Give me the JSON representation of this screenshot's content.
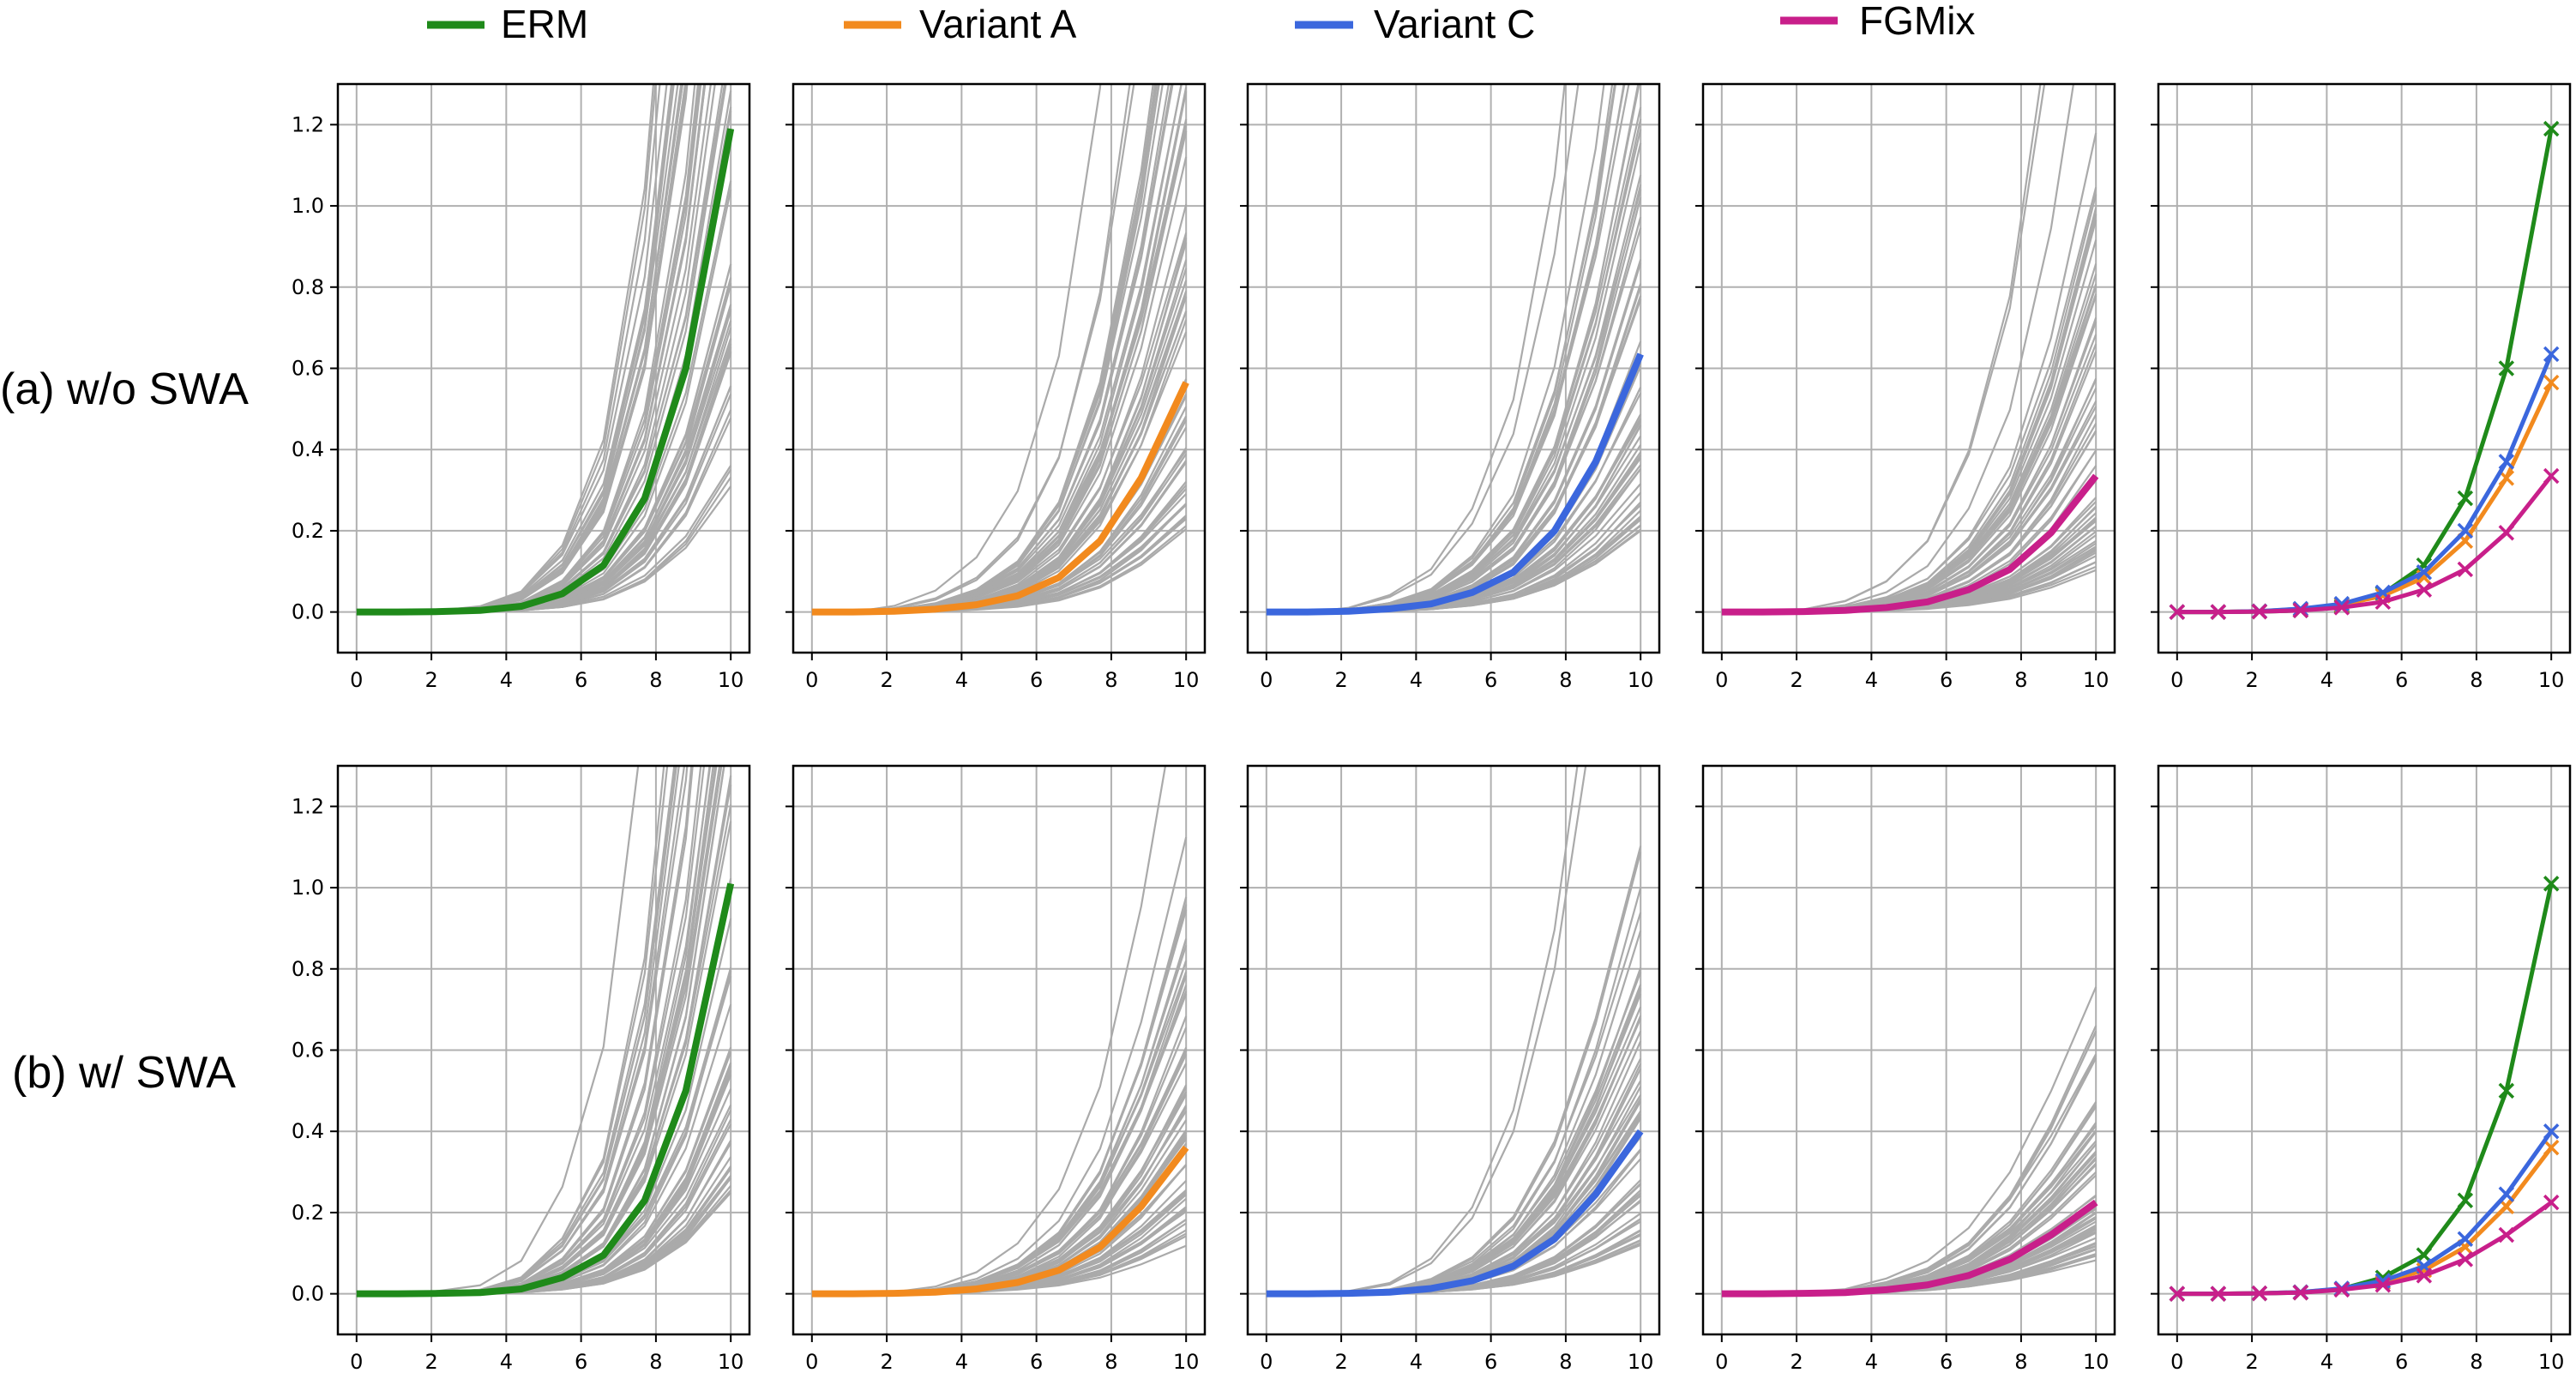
{
  "figure_title": "",
  "legend": [
    {
      "label": "ERM",
      "color": "#1f8a1a"
    },
    {
      "label": "Variant A",
      "color": "#f28a1e"
    },
    {
      "label": "Variant C",
      "color": "#3b67dd"
    },
    {
      "label": "FGMix",
      "color": "#c81f8a"
    }
  ],
  "row_labels": [
    "(a) w/o SWA",
    "(b) w/ SWA"
  ],
  "chart_data": {
    "type": "line",
    "layout": "2 rows x 5 panels; first four panels show per-run curves (gray) plus mean (colored); fifth panel overlays the four means with x markers",
    "x": [
      0,
      1.1,
      2.2,
      3.3,
      4.4,
      5.5,
      6.6,
      7.7,
      8.8,
      10
    ],
    "xlim": [
      -0.5,
      10.5
    ],
    "ylim": [
      -0.1,
      1.3
    ],
    "xticks": [
      0,
      2,
      4,
      6,
      8,
      10
    ],
    "yticks": [
      0.0,
      0.2,
      0.4,
      0.6,
      0.8,
      1.0,
      1.2
    ],
    "grid": true,
    "gray_curves_per_panel": 60,
    "gray_color": "#aaaaaa",
    "rows": [
      {
        "label": "(a) w/o SWA",
        "series": [
          {
            "name": "ERM",
            "color": "#1f8a1a",
            "values": [
              0,
              0,
              0.001,
              0.004,
              0.014,
              0.045,
              0.115,
              0.28,
              0.6,
              1.19
            ],
            "spread": 2.6
          },
          {
            "name": "Variant A",
            "color": "#f28a1e",
            "values": [
              0,
              0,
              0.002,
              0.007,
              0.018,
              0.04,
              0.085,
              0.175,
              0.33,
              0.565
            ],
            "spread": 2.3
          },
          {
            "name": "Variant C",
            "color": "#3b67dd",
            "values": [
              0,
              0,
              0.002,
              0.008,
              0.02,
              0.048,
              0.098,
              0.2,
              0.37,
              0.635
            ],
            "spread": 2.2
          },
          {
            "name": "FGMix",
            "color": "#c81f8a",
            "values": [
              0,
              0,
              0.001,
              0.004,
              0.011,
              0.025,
              0.055,
              0.105,
              0.195,
              0.335
            ],
            "spread": 2.4
          }
        ]
      },
      {
        "label": "(b) w/ SWA",
        "series": [
          {
            "name": "ERM",
            "color": "#1f8a1a",
            "values": [
              0,
              0,
              0.001,
              0.003,
              0.012,
              0.04,
              0.095,
              0.23,
              0.5,
              1.01
            ],
            "spread": 2.8
          },
          {
            "name": "Variant A",
            "color": "#f28a1e",
            "values": [
              0,
              0,
              0.001,
              0.004,
              0.012,
              0.028,
              0.058,
              0.115,
              0.215,
              0.36
            ],
            "spread": 2.0
          },
          {
            "name": "Variant C",
            "color": "#3b67dd",
            "values": [
              0,
              0,
              0.001,
              0.004,
              0.013,
              0.032,
              0.068,
              0.135,
              0.245,
              0.4
            ],
            "spread": 2.2
          },
          {
            "name": "FGMix",
            "color": "#c81f8a",
            "values": [
              0,
              0,
              0.001,
              0.003,
              0.01,
              0.022,
              0.045,
              0.085,
              0.145,
              0.225
            ],
            "spread": 2.0
          }
        ]
      }
    ]
  }
}
